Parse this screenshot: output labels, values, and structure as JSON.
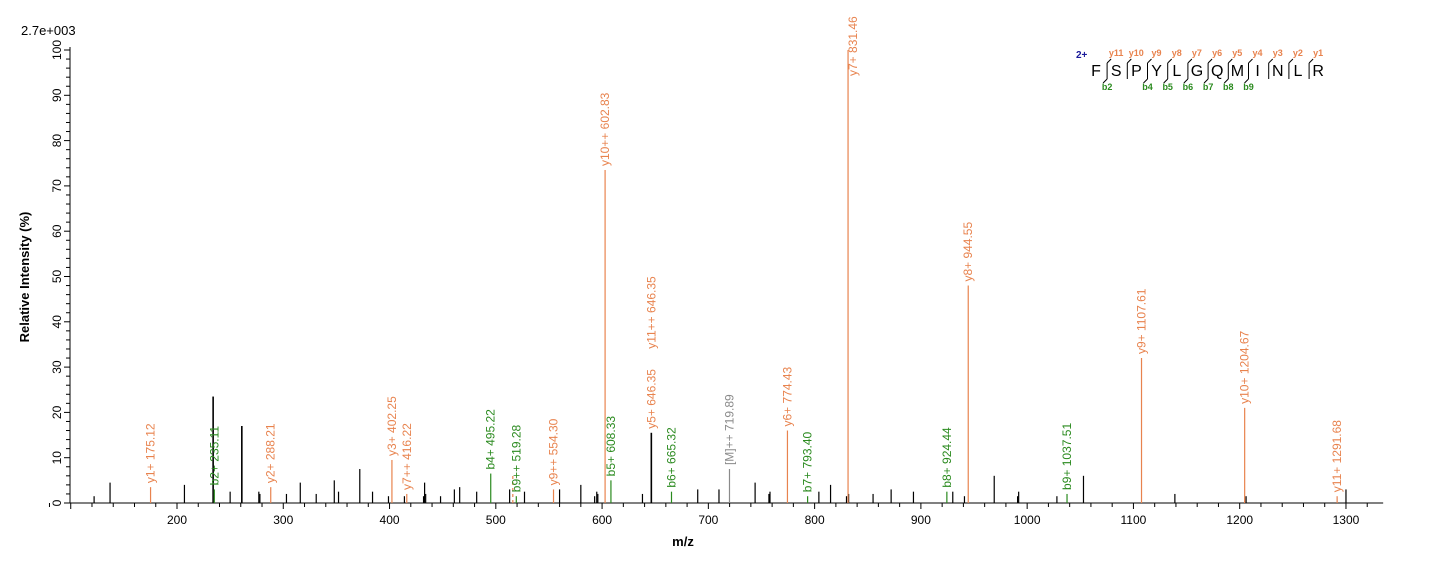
{
  "chart_data": {
    "type": "bar",
    "title": "",
    "scale_label": "2.7e+003",
    "xlabel": "m/z",
    "ylabel": "Relative  Intensity (%)",
    "xlim": [
      90,
      1335
    ],
    "ylim": [
      0,
      100
    ],
    "x_ticks": [
      200,
      300,
      400,
      500,
      600,
      700,
      800,
      900,
      1000,
      1100,
      1200,
      1300
    ],
    "y_ticks": [
      0,
      10,
      20,
      30,
      40,
      50,
      60,
      70,
      80,
      90,
      100
    ],
    "grid": false,
    "colors": {
      "y": "#e8834e",
      "b": "#2a8a1e",
      "precursor": "#8a8a8a",
      "other": "#000000",
      "charge": "#1a1a9a"
    },
    "peaks": [
      {
        "mz": 122,
        "i": 1.5,
        "type": "other"
      },
      {
        "mz": 137,
        "i": 4.5,
        "type": "other"
      },
      {
        "mz": 175.12,
        "i": 3.5,
        "type": "y",
        "label": "y1+ 175.12"
      },
      {
        "mz": 207,
        "i": 4,
        "type": "other"
      },
      {
        "mz": 234,
        "i": 23.5,
        "type": "other"
      },
      {
        "mz": 235.11,
        "i": 3,
        "type": "b",
        "label": "b2+ 235.11"
      },
      {
        "mz": 250,
        "i": 2.5,
        "type": "other"
      },
      {
        "mz": 261,
        "i": 17,
        "type": "other"
      },
      {
        "mz": 277,
        "i": 2.5,
        "type": "other"
      },
      {
        "mz": 278,
        "i": 2,
        "type": "other"
      },
      {
        "mz": 288.21,
        "i": 3.5,
        "type": "y",
        "label": "y2+ 288.21"
      },
      {
        "mz": 303,
        "i": 2,
        "type": "other"
      },
      {
        "mz": 316,
        "i": 4.5,
        "type": "other"
      },
      {
        "mz": 331,
        "i": 2,
        "type": "other"
      },
      {
        "mz": 348,
        "i": 5,
        "type": "other"
      },
      {
        "mz": 352,
        "i": 2.5,
        "type": "other"
      },
      {
        "mz": 372,
        "i": 7.5,
        "type": "other"
      },
      {
        "mz": 384,
        "i": 2.5,
        "type": "other"
      },
      {
        "mz": 399,
        "i": 1.5,
        "type": "other"
      },
      {
        "mz": 402.25,
        "i": 9.5,
        "type": "y",
        "label": "y3+ 402.25"
      },
      {
        "mz": 414,
        "i": 1.5,
        "type": "other"
      },
      {
        "mz": 416.22,
        "i": 2,
        "type": "y",
        "label": "y7++ 416.22"
      },
      {
        "mz": 432,
        "i": 1.5,
        "type": "other"
      },
      {
        "mz": 433,
        "i": 4.5,
        "type": "other"
      },
      {
        "mz": 434,
        "i": 2,
        "type": "other"
      },
      {
        "mz": 448,
        "i": 1.5,
        "type": "other"
      },
      {
        "mz": 461,
        "i": 3,
        "type": "other"
      },
      {
        "mz": 466,
        "i": 3.5,
        "type": "other"
      },
      {
        "mz": 482,
        "i": 2.5,
        "type": "other"
      },
      {
        "mz": 495.22,
        "i": 6.5,
        "type": "b",
        "label": "b4+ 495.22"
      },
      {
        "mz": 513,
        "i": 3,
        "type": "other"
      },
      {
        "mz": 516,
        "i": 6,
        "type": "y"
      },
      {
        "mz": 519.28,
        "i": 1.5,
        "type": "b",
        "label": "b9++ 519.28"
      },
      {
        "mz": 527,
        "i": 2.5,
        "type": "other"
      },
      {
        "mz": 554.3,
        "i": 3,
        "type": "y",
        "label": "y9++ 554.30"
      },
      {
        "mz": 560,
        "i": 3,
        "type": "other"
      },
      {
        "mz": 580,
        "i": 4,
        "type": "other"
      },
      {
        "mz": 593,
        "i": 1.5,
        "type": "other"
      },
      {
        "mz": 595,
        "i": 2.5,
        "type": "other"
      },
      {
        "mz": 596,
        "i": 2,
        "type": "other"
      },
      {
        "mz": 602.83,
        "i": 73.5,
        "type": "y",
        "label": "y10++ 602.83"
      },
      {
        "mz": 608.33,
        "i": 5,
        "type": "b",
        "label": "b5+ 608.33"
      },
      {
        "mz": 638,
        "i": 2,
        "type": "other"
      },
      {
        "mz": 646.35,
        "i": 15.5,
        "type": "other",
        "labels": [
          {
            "text": "y5+ 646.35",
            "type": "y"
          },
          {
            "text": "y11++ 646.35",
            "type": "y"
          }
        ]
      },
      {
        "mz": 665.32,
        "i": 2.5,
        "type": "b",
        "label": "b6+ 665.32"
      },
      {
        "mz": 690,
        "i": 3,
        "type": "other"
      },
      {
        "mz": 710,
        "i": 3,
        "type": "other"
      },
      {
        "mz": 719.89,
        "i": 7.5,
        "type": "precursor",
        "label": "[M]++ 719.89"
      },
      {
        "mz": 744,
        "i": 4.5,
        "type": "other"
      },
      {
        "mz": 757,
        "i": 2,
        "type": "other"
      },
      {
        "mz": 758,
        "i": 2.5,
        "type": "other"
      },
      {
        "mz": 774.43,
        "i": 16,
        "type": "y",
        "label": "y6+ 774.43"
      },
      {
        "mz": 793.4,
        "i": 1.5,
        "type": "b",
        "label": "b7+ 793.40"
      },
      {
        "mz": 804,
        "i": 2.5,
        "type": "other"
      },
      {
        "mz": 815,
        "i": 4,
        "type": "other"
      },
      {
        "mz": 830,
        "i": 1.5,
        "type": "other"
      },
      {
        "mz": 832,
        "i": 2,
        "type": "other"
      },
      {
        "mz": 831.46,
        "i": 100,
        "type": "y",
        "label": "y7+ 831.46"
      },
      {
        "mz": 855,
        "i": 2,
        "type": "other"
      },
      {
        "mz": 872,
        "i": 3,
        "type": "other"
      },
      {
        "mz": 893,
        "i": 2.5,
        "type": "other"
      },
      {
        "mz": 924.44,
        "i": 2.5,
        "type": "b",
        "label": "b8+ 924.44"
      },
      {
        "mz": 930,
        "i": 2.5,
        "type": "other"
      },
      {
        "mz": 941,
        "i": 1.5,
        "type": "other"
      },
      {
        "mz": 944.55,
        "i": 48,
        "type": "y",
        "label": "y8+ 944.55"
      },
      {
        "mz": 969,
        "i": 6,
        "type": "other"
      },
      {
        "mz": 991,
        "i": 1.5,
        "type": "other"
      },
      {
        "mz": 992,
        "i": 2.5,
        "type": "other"
      },
      {
        "mz": 1028,
        "i": 1.5,
        "type": "other"
      },
      {
        "mz": 1037.51,
        "i": 2,
        "type": "b",
        "label": "b9+ 1037.51"
      },
      {
        "mz": 1053,
        "i": 6,
        "type": "other"
      },
      {
        "mz": 1107.61,
        "i": 32,
        "type": "y",
        "label": "y9+ 1107.61"
      },
      {
        "mz": 1139,
        "i": 2,
        "type": "other"
      },
      {
        "mz": 1204.67,
        "i": 21,
        "type": "y",
        "label": "y10+ 1204.67"
      },
      {
        "mz": 1206,
        "i": 1.5,
        "type": "other"
      },
      {
        "mz": 1291.68,
        "i": 1.5,
        "type": "y",
        "label": "y11+ 1291.68"
      },
      {
        "mz": 1300,
        "i": 3,
        "type": "other"
      }
    ]
  },
  "sequence": {
    "charge": "2+",
    "residues": [
      "F",
      "S",
      "P",
      "Y",
      "L",
      "G",
      "Q",
      "M",
      "I",
      "N",
      "L",
      "R"
    ],
    "y_ions": [
      "y11",
      "y10",
      "y9",
      "y8",
      "y7",
      "y6",
      "y5",
      "y4",
      "y3",
      "y2",
      "y1"
    ],
    "b_ions": [
      "b2",
      "",
      "b4",
      "b5",
      "b6",
      "b7",
      "b8",
      "b9",
      "",
      "",
      ""
    ]
  }
}
